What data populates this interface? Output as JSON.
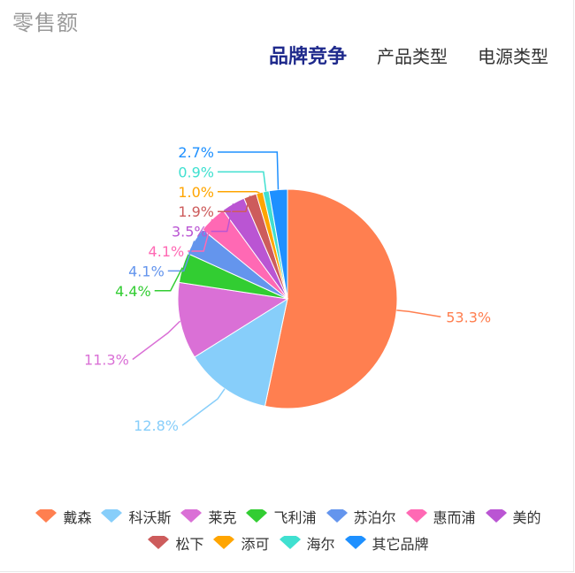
{
  "header": {
    "title": "零售额",
    "tabs": [
      {
        "label": "品牌竞争",
        "active": true
      },
      {
        "label": "产品类型",
        "active": false
      },
      {
        "label": "电源类型",
        "active": false
      }
    ]
  },
  "chart_data": {
    "type": "pie",
    "title": "",
    "legend_placement": "bottom",
    "slices": [
      {
        "name": "戴森",
        "value": 53.3,
        "label": "53.3%",
        "color": "#ff7f50"
      },
      {
        "name": "科沃斯",
        "value": 12.8,
        "label": "12.8%",
        "color": "#87cefa"
      },
      {
        "name": "莱克",
        "value": 11.3,
        "label": "11.3%",
        "color": "#da70d6"
      },
      {
        "name": "飞利浦",
        "value": 4.4,
        "label": "4.4%",
        "color": "#32cd32"
      },
      {
        "name": "苏泊尔",
        "value": 4.1,
        "label": "4.1%",
        "color": "#6495ed"
      },
      {
        "name": "惠而浦",
        "value": 4.1,
        "label": "4.1%",
        "color": "#ff69b4"
      },
      {
        "name": "美的",
        "value": 3.5,
        "label": "3.5%",
        "color": "#ba55d3"
      },
      {
        "name": "松下",
        "value": 1.9,
        "label": "1.9%",
        "color": "#cd5c5c"
      },
      {
        "name": "添可",
        "value": 1.0,
        "label": "1.0%",
        "color": "#ffa500"
      },
      {
        "name": "海尔",
        "value": 0.9,
        "label": "0.9%",
        "color": "#40e0d0"
      },
      {
        "name": "其它品牌",
        "value": 2.7,
        "label": "2.7%",
        "color": "#1e90ff"
      }
    ]
  }
}
